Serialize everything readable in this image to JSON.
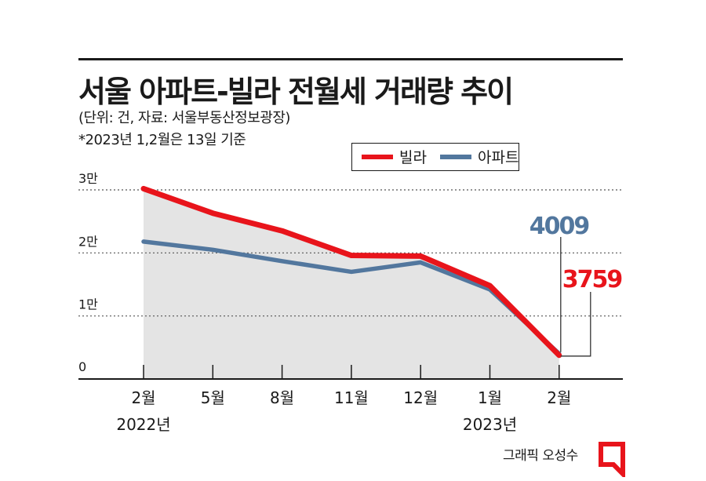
{
  "header": {
    "title": "서울 아파트-빌라 전월세 거래량 추이",
    "subtitle": "(단위: 건, 자료: 서울부동산정보광장)",
    "note": "*2023년 1,2월은 13일 기준"
  },
  "legend": {
    "villa_label": "빌라",
    "apartment_label": "아파트"
  },
  "credit": "그래픽 오성수",
  "colors": {
    "villa": "#e8141b",
    "apartment": "#52779e",
    "area_fill": "#e4e4e4",
    "grid": "#555555",
    "logo": "#e8141b"
  },
  "chart_data": {
    "type": "line",
    "title": "서울 아파트-빌라 전월세 거래량 추이",
    "categories": [
      "2월",
      "5월",
      "8월",
      "11월",
      "12월",
      "1월",
      "2월"
    ],
    "year_labels": [
      {
        "index": 0,
        "label": "2022년"
      },
      {
        "index": 5,
        "label": "2023년"
      }
    ],
    "y_ticks": [
      {
        "value": 0,
        "label": "0"
      },
      {
        "value": 10000,
        "label": "1만"
      },
      {
        "value": 20000,
        "label": "2만"
      },
      {
        "value": 30000,
        "label": "3만"
      }
    ],
    "ylim": [
      0,
      30000
    ],
    "series": [
      {
        "name": "빌라",
        "key": "villa",
        "values": [
          30200,
          26300,
          23500,
          19600,
          19500,
          14800,
          3759
        ],
        "filled": true
      },
      {
        "name": "아파트",
        "key": "apartment",
        "values": [
          21800,
          20500,
          18700,
          17000,
          18500,
          14200,
          4009
        ],
        "filled": false
      }
    ],
    "annotations": [
      {
        "series": "아파트",
        "index": 6,
        "text": "4009"
      },
      {
        "series": "빌라",
        "index": 6,
        "text": "3759"
      }
    ]
  }
}
